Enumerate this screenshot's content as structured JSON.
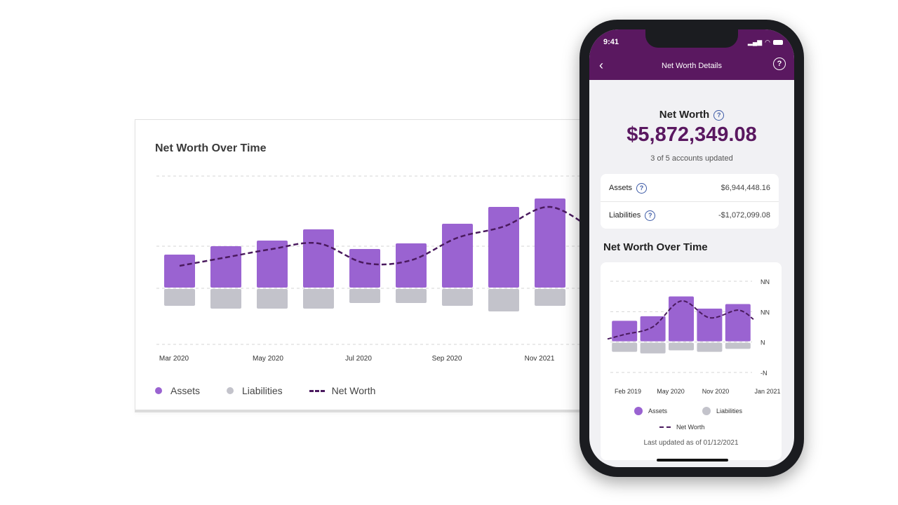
{
  "desktop": {
    "title": "Net Worth Over Time",
    "legend": {
      "assets": "Assets",
      "liabilities": "Liabilities",
      "net_worth": "Net Worth"
    }
  },
  "phone": {
    "status_time": "9:41",
    "header_title": "Net Worth Details",
    "net_worth_label": "Net Worth",
    "net_worth_value": "$5,872,349.08",
    "accounts_updated": "3 of 5 accounts updated",
    "assets_label": "Assets",
    "assets_value": "$6,944,448.16",
    "liabilities_label": "Liabilities",
    "liabilities_value": "-$1,072,099.08",
    "chart_title": "Net Worth Over Time",
    "legend": {
      "assets": "Assets",
      "liabilities": "Liabilities",
      "net_worth": "Net Worth"
    },
    "last_updated": "Last updated as of 01/12/2021"
  },
  "colors": {
    "assets": "#9a63d1",
    "liabilities": "#c3c3cb",
    "net_worth": "#4a1a5e",
    "brand": "#5a1860",
    "link": "#3c5aa6"
  },
  "icons": [
    "back-arrow-icon",
    "help-icon",
    "signal-icon",
    "wifi-icon",
    "battery-icon",
    "info-icon"
  ],
  "chart_data": [
    {
      "type": "bar",
      "title": "Net Worth Over Time",
      "x_labels": [
        "Mar 2020",
        "May 2020",
        "Jul 2020",
        "Sep 2020",
        "Nov 2021"
      ],
      "series": [
        {
          "name": "Assets",
          "values": [
            1.2,
            1.5,
            1.7,
            2.1,
            1.4,
            1.6,
            2.3,
            2.9,
            3.2,
            2.2
          ]
        },
        {
          "name": "Liabilities",
          "values": [
            -0.6,
            -0.7,
            -0.7,
            -0.7,
            -0.5,
            -0.5,
            -0.6,
            -0.8,
            -0.6,
            -0.5
          ]
        },
        {
          "name": "Net Worth",
          "values": [
            0.8,
            1.1,
            1.4,
            1.6,
            0.9,
            1.0,
            1.8,
            2.2,
            2.9,
            2.0
          ]
        }
      ],
      "ylim": [
        -2,
        4
      ]
    },
    {
      "type": "bar",
      "title": "Net Worth Over Time",
      "x_labels": [
        "Feb 2019",
        "May 2020",
        "Nov 2020",
        "Jan 2021"
      ],
      "y_tick_labels": [
        "NN",
        "NN",
        "N",
        "-N"
      ],
      "series": [
        {
          "name": "Assets",
          "values": [
            0.7,
            0.85,
            1.5,
            1.1,
            1.25
          ]
        },
        {
          "name": "Liabilities",
          "values": [
            -0.3,
            -0.35,
            -0.25,
            -0.3,
            -0.2
          ]
        },
        {
          "name": "Net Worth",
          "values": [
            0.25,
            0.5,
            1.35,
            0.8,
            1.05
          ]
        }
      ],
      "ylim": [
        -1,
        2
      ]
    }
  ]
}
